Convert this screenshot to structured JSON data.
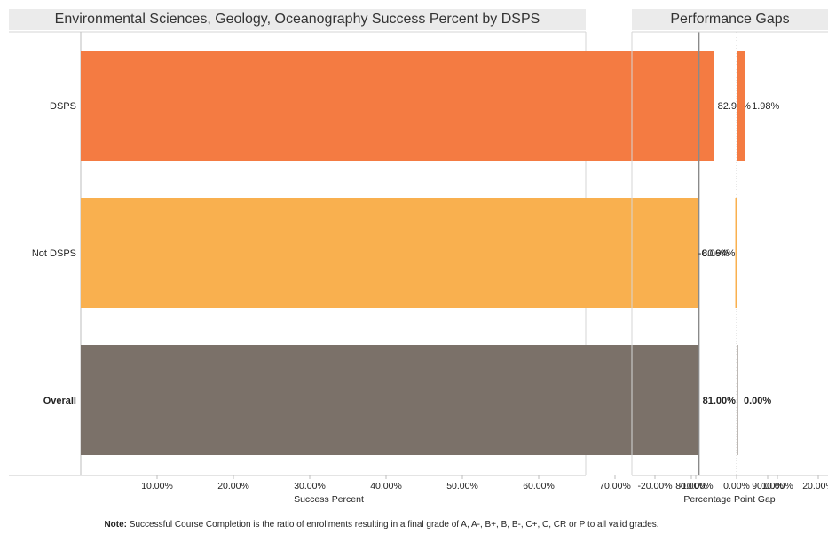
{
  "chart_data": [
    {
      "type": "bar",
      "orientation": "horizontal",
      "title": "Environmental Sciences, Geology, Oceanography Success Percent by DSPS",
      "xlabel": "Success Percent",
      "categories": [
        "DSPS",
        "Not DSPS",
        "Overall"
      ],
      "values": [
        82.98,
        80.94,
        81.0
      ],
      "value_labels": [
        "82.98%",
        "80.94%",
        "81.00%"
      ],
      "colors": [
        "#f47b42",
        "#f9b04f",
        "#7b7169"
      ],
      "xlim": [
        0,
        98
      ],
      "xticks": [
        10,
        20,
        30,
        40,
        50,
        60,
        70,
        80,
        90
      ],
      "xtick_labels": [
        "10.00%",
        "20.00%",
        "30.00%",
        "40.00%",
        "50.00%",
        "60.00%",
        "70.00%",
        "80.00%",
        "90.00%"
      ],
      "reference_line": 81.0,
      "grid": false
    },
    {
      "type": "bar",
      "orientation": "horizontal",
      "title": "Performance Gaps",
      "xlabel": "Percentage Point Gap",
      "categories": [
        "DSPS",
        "Not DSPS",
        "Overall"
      ],
      "values": [
        1.98,
        -0.06,
        0.0
      ],
      "value_labels": [
        "1.98%",
        "-0.06%",
        "0.00%"
      ],
      "colors": [
        "#f47b42",
        "#f9b04f",
        "#7b7169"
      ],
      "xlim": [
        -26,
        21
      ],
      "xticks": [
        -20,
        -10,
        0,
        10,
        20
      ],
      "xtick_labels": [
        "-20.00%",
        "-10.00%",
        "0.00%",
        "10.00%",
        "20.00%"
      ],
      "grid": false
    }
  ],
  "note": {
    "bold": "Note:",
    "text": " Successful Course Completion is the ratio of enrollments resulting in a final grade of A, A-, B+, B, B-, C+, C, CR or P to all valid grades."
  }
}
